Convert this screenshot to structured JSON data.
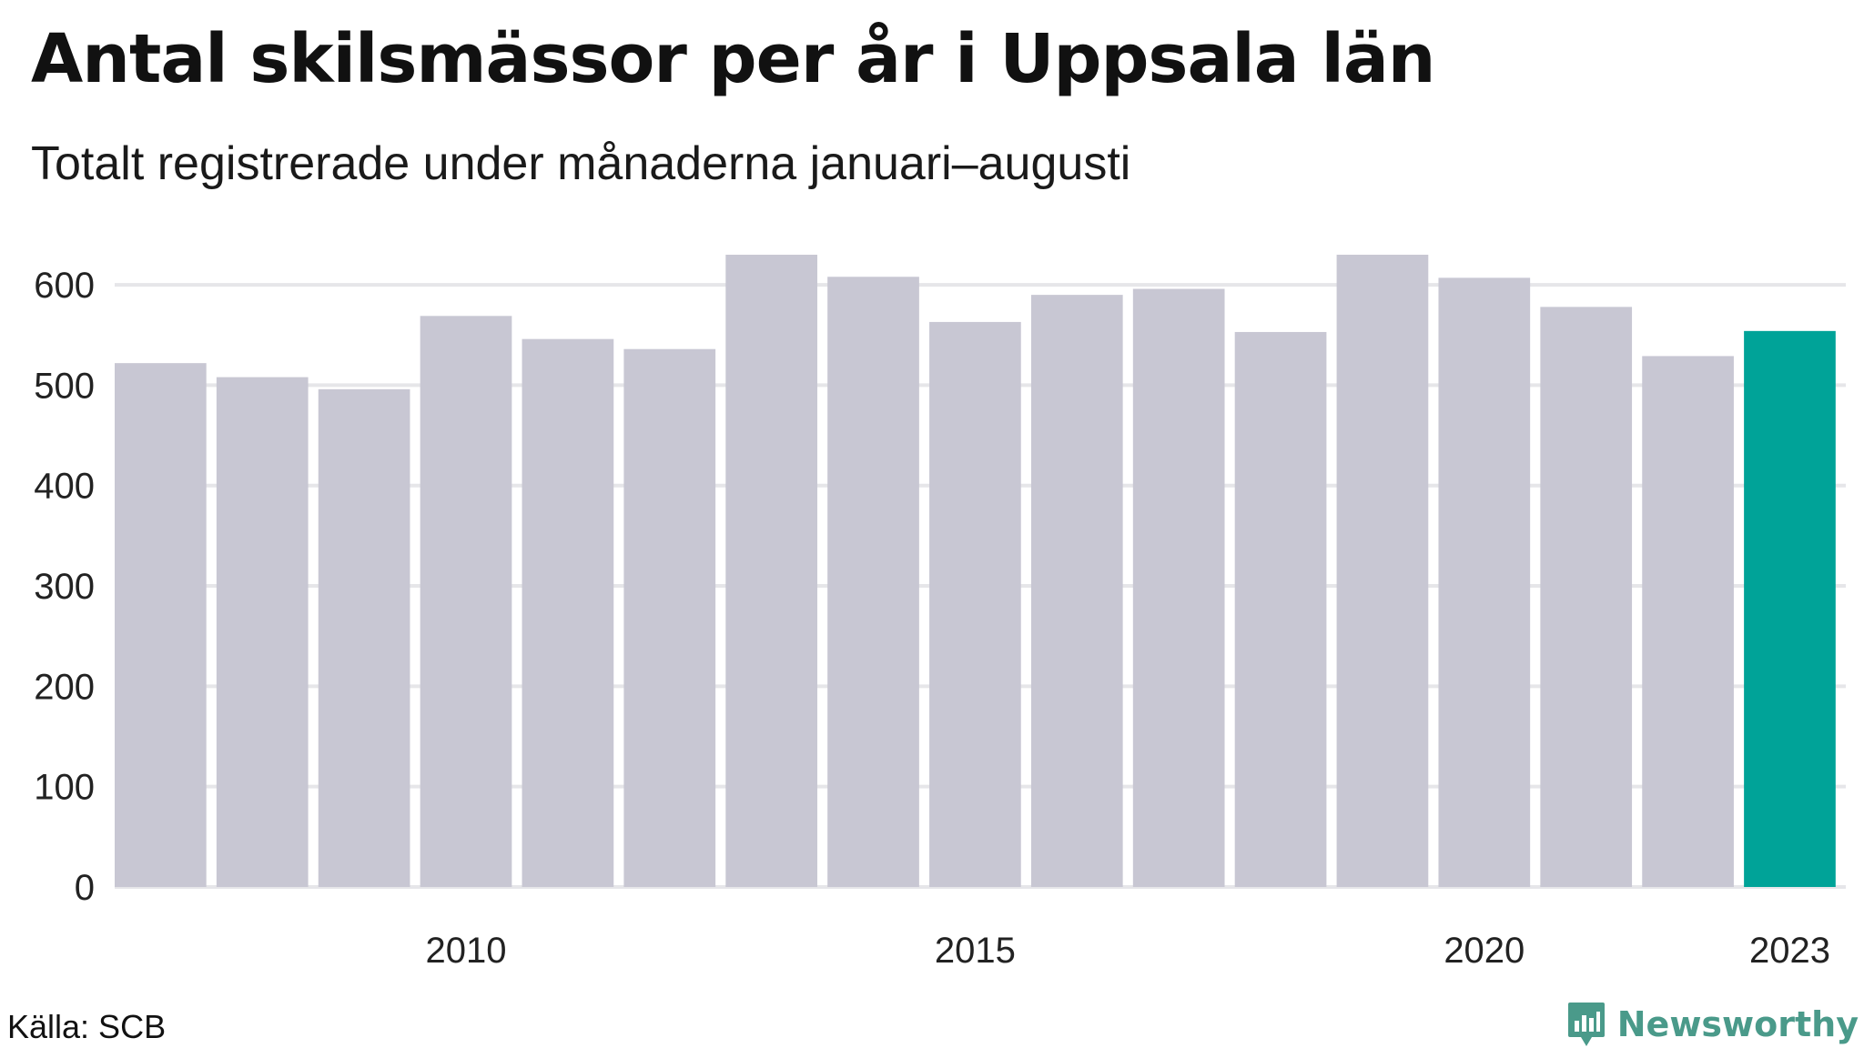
{
  "header": {
    "title": "Antal skilsmässor per år i Uppsala län",
    "subtitle": "Totalt registrerade under månaderna januari–augusti"
  },
  "footer": {
    "source": "Källa: SCB",
    "brand": "Newsworthy",
    "brand_icon": "newsworthy-logo-icon",
    "brand_color": "#4a9a8a"
  },
  "chart_data": {
    "type": "bar",
    "title": "Antal skilsmässor per år i Uppsala län",
    "subtitle": "Totalt registrerade under månaderna januari–augusti",
    "xlabel": "",
    "ylabel": "",
    "categories": [
      2007,
      2008,
      2009,
      2010,
      2011,
      2012,
      2013,
      2014,
      2015,
      2016,
      2017,
      2018,
      2019,
      2020,
      2021,
      2022,
      2023
    ],
    "values": [
      522,
      508,
      496,
      569,
      546,
      536,
      630,
      608,
      563,
      590,
      596,
      553,
      630,
      607,
      578,
      529,
      554
    ],
    "highlight_category": 2023,
    "colors": {
      "bar": "#c8c7d3",
      "highlight": "#00a398",
      "grid": "#e6e6e9"
    },
    "ylim": [
      0,
      630
    ],
    "yticks": [
      0,
      100,
      200,
      300,
      400,
      500,
      600
    ],
    "xticks": [
      "2010",
      "2015",
      "2020",
      "2023"
    ],
    "grid": true,
    "legend": "none"
  }
}
